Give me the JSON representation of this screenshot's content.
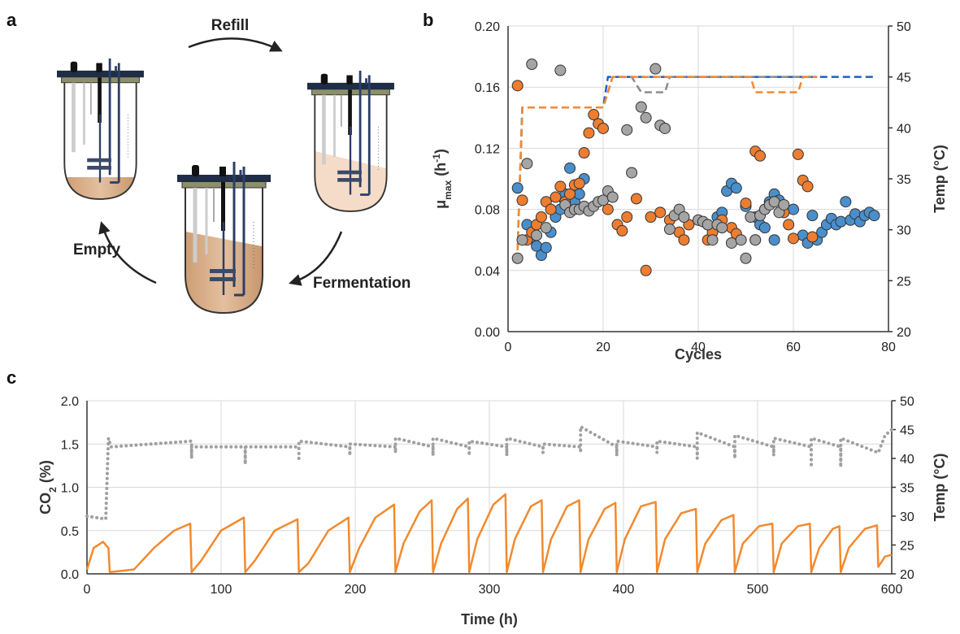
{
  "panels": [
    "a",
    "b",
    "c"
  ],
  "diagram": {
    "steps": [
      "Refill",
      "Fermentation",
      "Empty"
    ]
  },
  "chart_data": [
    {
      "type": "scatter",
      "xlabel": "Cycles",
      "ylabel": [
        {
          "text": "μ"
        },
        {
          "text": "max",
          "sub": true
        },
        {
          "text": " (h"
        },
        {
          "text": "-1",
          "sup": true
        },
        {
          "text": ")"
        }
      ],
      "y2label": [
        {
          "text": "Temp (°C)"
        }
      ],
      "xlim": [
        0,
        80
      ],
      "xticks": [
        0,
        20,
        40,
        60,
        80
      ],
      "ylim": [
        0,
        0.2
      ],
      "yticks": [
        {
          "value": 0,
          "label": "0.00"
        },
        {
          "value": 0.04,
          "label": "0.04"
        },
        {
          "value": 0.08,
          "label": "0.08"
        },
        {
          "value": 0.12,
          "label": "0.12"
        },
        {
          "value": 0.16,
          "label": "0.16"
        },
        {
          "value": 0.2,
          "label": "0.20"
        }
      ],
      "y2lim": [
        20,
        50
      ],
      "y2ticks": [
        20,
        25,
        30,
        35,
        40,
        45,
        50
      ],
      "grid": true,
      "series": [
        {
          "type": "line",
          "axis": "y2",
          "dash": "dashed",
          "color": "#1f5fbf",
          "x": [
            2,
            3,
            20,
            21,
            77
          ],
          "values": [
            28,
            42,
            42,
            45,
            45
          ]
        },
        {
          "type": "line",
          "axis": "y2",
          "dash": "dashed",
          "color": "#8c8c8c",
          "x": [
            2,
            3,
            20,
            22,
            26,
            28,
            33,
            34,
            65
          ],
          "values": [
            28,
            42,
            42,
            45,
            45,
            43.5,
            43.5,
            45,
            45
          ]
        },
        {
          "type": "line",
          "axis": "y2",
          "dash": "dashed",
          "color": "#f08a34",
          "x": [
            2,
            3,
            20,
            22,
            51,
            52,
            61,
            62,
            65
          ],
          "values": [
            28,
            42,
            42,
            45,
            45,
            43.5,
            43.5,
            45,
            45
          ]
        },
        {
          "type": "scatter",
          "color": "#4a8fcc",
          "x": [
            2,
            4,
            5,
            6,
            7,
            8,
            9,
            10,
            11,
            12,
            13,
            14,
            15,
            16,
            42,
            44,
            45,
            46,
            47,
            48,
            50,
            52,
            53,
            54,
            55,
            56,
            57,
            58,
            60,
            62,
            63,
            64,
            65,
            66,
            67,
            68,
            69,
            70,
            71,
            72,
            73,
            74,
            75,
            76,
            77,
            56,
            52
          ],
          "values": [
            0.094,
            0.07,
            0.062,
            0.056,
            0.05,
            0.055,
            0.065,
            0.075,
            0.08,
            0.09,
            0.107,
            0.085,
            0.09,
            0.1,
            0.07,
            0.075,
            0.078,
            0.092,
            0.097,
            0.094,
            0.082,
            0.075,
            0.07,
            0.068,
            0.085,
            0.09,
            0.086,
            0.078,
            0.08,
            0.063,
            0.058,
            0.076,
            0.06,
            0.065,
            0.07,
            0.074,
            0.07,
            0.072,
            0.085,
            0.073,
            0.077,
            0.072,
            0.076,
            0.078,
            0.076,
            0.06,
            0.06
          ]
        },
        {
          "type": "scatter",
          "color": "#ed7d31",
          "x": [
            2,
            3,
            4,
            5,
            6,
            7,
            8,
            9,
            10,
            11,
            12,
            13,
            14,
            15,
            16,
            17,
            18,
            19,
            20,
            21,
            23,
            24,
            25,
            27,
            29,
            30,
            32,
            34,
            36,
            37,
            38,
            42,
            43,
            45,
            47,
            48,
            50,
            52,
            53,
            54,
            56,
            58,
            59,
            60,
            61,
            62,
            63,
            64
          ],
          "values": [
            0.161,
            0.086,
            0.06,
            0.065,
            0.07,
            0.075,
            0.085,
            0.08,
            0.088,
            0.095,
            0.085,
            0.09,
            0.096,
            0.097,
            0.117,
            0.13,
            0.142,
            0.136,
            0.133,
            0.08,
            0.07,
            0.066,
            0.075,
            0.087,
            0.04,
            0.075,
            0.078,
            0.073,
            0.065,
            0.06,
            0.07,
            0.06,
            0.065,
            0.073,
            0.068,
            0.064,
            0.084,
            0.118,
            0.115,
            0.08,
            0.085,
            0.078,
            0.07,
            0.061,
            0.116,
            0.099,
            0.095,
            0.062
          ]
        },
        {
          "type": "scatter",
          "color": "#a5a5a5",
          "x": [
            2,
            3,
            4,
            5,
            6,
            8,
            11,
            12,
            13,
            14,
            15,
            16,
            17,
            18,
            19,
            20,
            21,
            22,
            25,
            26,
            28,
            29,
            31,
            32,
            33,
            34,
            35,
            36,
            37,
            40,
            41,
            42,
            43,
            44,
            45,
            47,
            49,
            50,
            51,
            52,
            53,
            54,
            55,
            56,
            57,
            58
          ],
          "values": [
            0.048,
            0.06,
            0.11,
            0.175,
            0.063,
            0.068,
            0.171,
            0.083,
            0.078,
            0.08,
            0.08,
            0.082,
            0.079,
            0.082,
            0.085,
            0.086,
            0.092,
            0.088,
            0.132,
            0.104,
            0.147,
            0.14,
            0.172,
            0.135,
            0.133,
            0.067,
            0.076,
            0.08,
            0.075,
            0.073,
            0.072,
            0.07,
            0.06,
            0.07,
            0.068,
            0.058,
            0.06,
            0.048,
            0.075,
            0.06,
            0.076,
            0.08,
            0.083,
            0.085,
            0.078,
            0.083
          ]
        }
      ]
    },
    {
      "type": "line",
      "xlabel": "Time (h)",
      "ylabel": [
        {
          "text": "CO"
        },
        {
          "text": "2",
          "sub": true
        },
        {
          "text": " (%)"
        }
      ],
      "y2label": [
        {
          "text": "Temp (°C)"
        }
      ],
      "xlim": [
        0,
        600
      ],
      "xticks": [
        0,
        100,
        200,
        300,
        400,
        500,
        600
      ],
      "ylim": [
        0,
        2
      ],
      "yticks": [
        {
          "value": 0,
          "label": "0.0"
        },
        {
          "value": 0.5,
          "label": "0.5"
        },
        {
          "value": 1,
          "label": "1.0"
        },
        {
          "value": 1.5,
          "label": "1.5"
        },
        {
          "value": 2,
          "label": "2.0"
        }
      ],
      "y2lim": [
        20,
        50
      ],
      "y2ticks": [
        20,
        25,
        30,
        35,
        40,
        45,
        50
      ],
      "grid": true,
      "series": [
        {
          "type": "line",
          "axis": "y2",
          "dash": "dotted",
          "color": "#a0a0a0",
          "x": [
            0,
            14,
            16,
            18,
            78,
            78,
            78,
            118,
            118,
            118,
            158,
            158,
            158,
            196,
            196,
            196,
            230,
            230,
            230,
            258,
            258,
            258,
            285,
            285,
            285,
            313,
            313,
            313,
            340,
            340,
            340,
            368,
            368,
            368,
            395,
            395,
            395,
            425,
            425,
            425,
            455,
            455,
            455,
            483,
            483,
            483,
            512,
            512,
            512,
            540,
            540,
            540,
            562,
            562,
            562,
            590,
            595,
            600
          ],
          "values": [
            30,
            29.5,
            43.5,
            42,
            43,
            40,
            42,
            42,
            39,
            42,
            42,
            40,
            43,
            42,
            40.5,
            42.5,
            42,
            41,
            43.5,
            42,
            40.5,
            43.5,
            42,
            40.5,
            43,
            42,
            40.5,
            43.5,
            42,
            41,
            42.5,
            42,
            41,
            45.5,
            42,
            40.5,
            43,
            42,
            41,
            43,
            42,
            40,
            44.5,
            42,
            40,
            44,
            42,
            40.5,
            43.5,
            42,
            38.5,
            43.5,
            42,
            38.5,
            43.5,
            41,
            44,
            45
          ]
        },
        {
          "type": "line",
          "color": "#f28a2e",
          "x": [
            0,
            5,
            12,
            16,
            17,
            35,
            50,
            65,
            77,
            78,
            85,
            100,
            117,
            118,
            125,
            140,
            157,
            158,
            165,
            180,
            195,
            196,
            203,
            215,
            229,
            230,
            236,
            248,
            257,
            258,
            264,
            276,
            284,
            285,
            291,
            303,
            312,
            313,
            319,
            331,
            339,
            340,
            346,
            358,
            367,
            368,
            374,
            386,
            394,
            395,
            401,
            413,
            424,
            425,
            431,
            443,
            454,
            455,
            461,
            473,
            482,
            483,
            489,
            501,
            511,
            512,
            518,
            530,
            539,
            540,
            546,
            556,
            561,
            562,
            568,
            580,
            589,
            590,
            595,
            600
          ],
          "values": [
            0.05,
            0.3,
            0.37,
            0.3,
            0.02,
            0.05,
            0.3,
            0.5,
            0.58,
            0.02,
            0.15,
            0.5,
            0.65,
            0.02,
            0.15,
            0.5,
            0.63,
            0.02,
            0.12,
            0.5,
            0.65,
            0.02,
            0.3,
            0.65,
            0.8,
            0.02,
            0.35,
            0.72,
            0.85,
            0.02,
            0.35,
            0.75,
            0.87,
            0.02,
            0.4,
            0.8,
            0.92,
            0.02,
            0.4,
            0.78,
            0.85,
            0.02,
            0.4,
            0.78,
            0.85,
            0.02,
            0.4,
            0.75,
            0.82,
            0.02,
            0.4,
            0.78,
            0.83,
            0.02,
            0.4,
            0.7,
            0.75,
            0.02,
            0.35,
            0.62,
            0.68,
            0.02,
            0.35,
            0.55,
            0.58,
            0.02,
            0.35,
            0.55,
            0.58,
            0.02,
            0.3,
            0.52,
            0.55,
            0.02,
            0.3,
            0.52,
            0.56,
            0.08,
            0.2,
            0.22
          ]
        }
      ]
    }
  ]
}
